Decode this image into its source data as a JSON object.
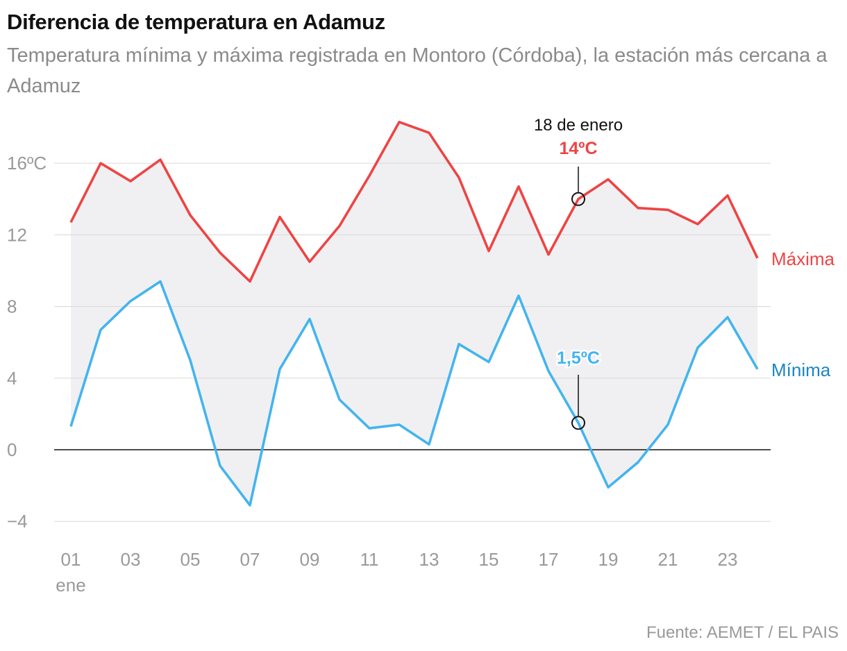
{
  "header": {
    "title": "Diferencia de temperatura en Adamuz",
    "subtitle": "Temperatura mínima y máxima registrada en Montoro (Córdoba), la estación más cercana a Adamuz"
  },
  "footer": {
    "source": "Fuente: AEMET / EL PAIS"
  },
  "colors": {
    "max": "#ee4444",
    "min": "#44b4ee",
    "min_label": "#1a86c0",
    "band": "#f0f0f2"
  },
  "chart_data": {
    "type": "line",
    "title": "Diferencia de temperatura en Adamuz",
    "x": [
      1,
      2,
      3,
      4,
      5,
      6,
      7,
      8,
      9,
      10,
      11,
      12,
      13,
      14,
      15,
      16,
      17,
      18,
      19,
      20,
      21,
      22,
      23,
      24
    ],
    "series": [
      {
        "name": "Máxima",
        "values": [
          12.7,
          16.0,
          15.0,
          16.2,
          13.1,
          11.0,
          9.4,
          13.0,
          10.5,
          12.5,
          15.3,
          18.3,
          17.7,
          15.2,
          11.1,
          14.7,
          10.9,
          14.0,
          15.1,
          13.5,
          13.4,
          12.6,
          14.2,
          10.7
        ]
      },
      {
        "name": "Mínima",
        "values": [
          1.3,
          6.7,
          8.3,
          9.4,
          5.0,
          -0.9,
          -3.1,
          4.5,
          7.3,
          2.8,
          1.2,
          1.4,
          0.3,
          5.9,
          4.9,
          8.6,
          4.4,
          1.5,
          -2.1,
          -0.7,
          1.4,
          5.7,
          7.4,
          4.5
        ]
      }
    ],
    "ylim": [
      -4,
      18
    ],
    "yticks": [
      -4,
      0,
      4,
      8,
      12,
      16
    ],
    "ytick_labels": [
      "−4",
      "0",
      "4",
      "8",
      "12",
      "16ºC"
    ],
    "xticks": [
      1,
      3,
      5,
      7,
      9,
      11,
      13,
      15,
      17,
      19,
      21,
      23
    ],
    "xtick_labels": [
      "01",
      "03",
      "05",
      "07",
      "09",
      "11",
      "13",
      "15",
      "17",
      "19",
      "21",
      "23"
    ],
    "xtick_sublabel": "ene",
    "annotation": {
      "date_label": "18 de enero",
      "max_label": "14ºC",
      "min_label": "1,5ºC",
      "x": 18,
      "max_value": 14.0,
      "min_value": 1.5
    },
    "xlabel": "",
    "ylabel": ""
  }
}
